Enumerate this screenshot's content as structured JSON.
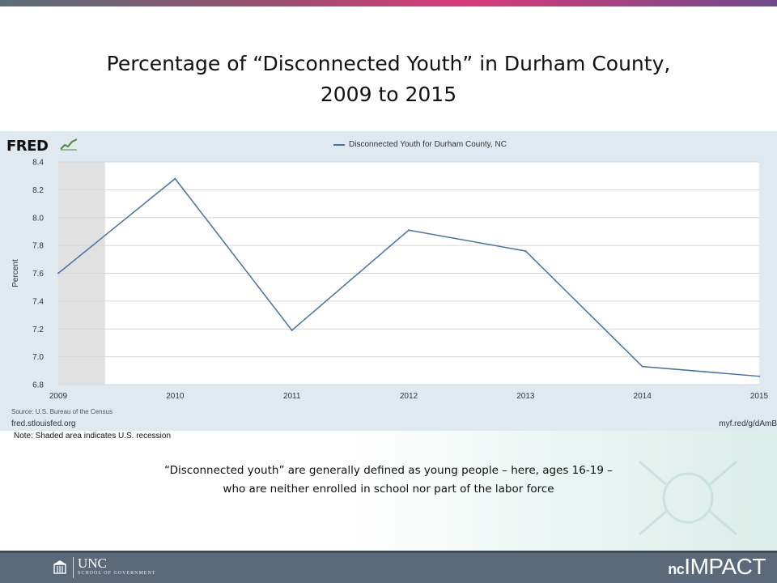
{
  "slide": {
    "title_line1": "Percentage of “Disconnected Youth” in Durham County,",
    "title_line2": "2009 to 2015",
    "caption_line1": "“Disconnected youth” are generally defined as young people – here, ages 16-19 –",
    "caption_line2": "who are neither enrolled in school nor part of the labor force",
    "note": "Note:  Shaded area indicates U.S. recession"
  },
  "fred": {
    "logo": "FRED",
    "source": "Source: U.S. Bureau of the Census",
    "url_left": "fred.stlouisfed.org",
    "url_right": "myf.red/g/dAmB"
  },
  "footer": {
    "unc_name": "UNC",
    "unc_sub": "SCHOOL OF GOVERNMENT",
    "brand_prefix": "nc",
    "brand_name": "IMPACT"
  },
  "colors": {
    "line": "#4572a7",
    "recession": "#e1e1e1",
    "panel": "#e1e9f0"
  },
  "chart_data": {
    "type": "line",
    "title": "",
    "xlabel": "",
    "ylabel": "Percent",
    "x": [
      2009,
      2010,
      2011,
      2012,
      2013,
      2014,
      2015
    ],
    "xticks": [
      "2009",
      "2010",
      "2011",
      "2012",
      "2013",
      "2014",
      "2015"
    ],
    "yticks": [
      "6.8",
      "7.0",
      "7.2",
      "7.4",
      "7.6",
      "7.8",
      "8.0",
      "8.2",
      "8.4"
    ],
    "ylim": [
      6.8,
      8.4
    ],
    "xlim": [
      2009,
      2015
    ],
    "grid": true,
    "legend_position": "top-center",
    "series": [
      {
        "name": "Disconnected Youth for Durham County, NC",
        "values": [
          7.6,
          8.28,
          7.19,
          7.91,
          7.76,
          6.93,
          6.86
        ]
      }
    ],
    "recession": [
      2009,
      2009.4
    ]
  }
}
